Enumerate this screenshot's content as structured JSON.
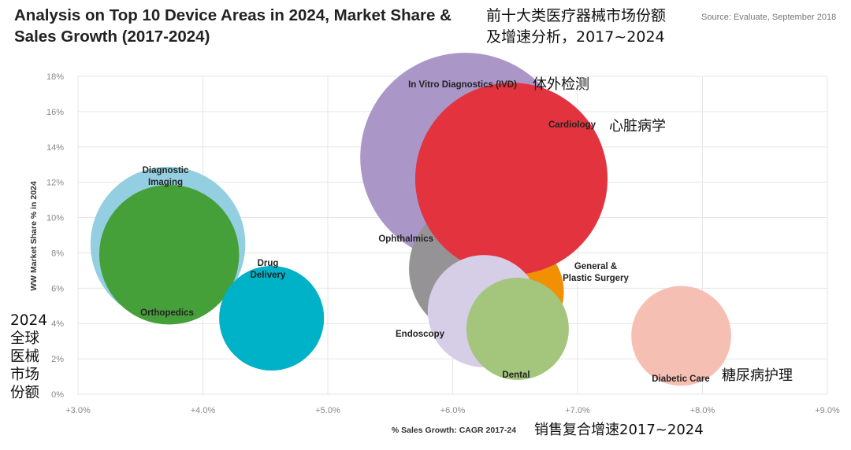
{
  "title_en": "Analysis on Top 10 Device Areas in 2024, Market Share & Sales Growth (2017-2024)",
  "title_cn_line1": "前十大类医疗器械市场份额",
  "title_cn_line2": "及增速分析，2017~2024",
  "source": "Source: Evaluate, September 2018",
  "left_cn": [
    "2024",
    "全球",
    "医械",
    "市场",
    "份额"
  ],
  "colors": {
    "ivd": "#ab96c8",
    "cardiology": "#e3333f",
    "diagnostic_imaging": "#93cfe0",
    "orthopedics": "#46a03a",
    "drug_delivery": "#00b2c8",
    "ophthalmics": "#969396",
    "general_plastic_surgery": "#f19003",
    "endoscopy": "#d6cde6",
    "dental": "#a3c67c",
    "diabetic_care": "#f6bfb4",
    "grid": "#e6e6e6"
  },
  "chart_data": {
    "type": "scatter",
    "subtype": "bubble",
    "xlabel": "% Sales Growth: CAGR 2017-24",
    "xlabel_cn": "销售复合增速2017~2024",
    "ylabel": "WW Market Share % in 2024",
    "xlim": [
      3.0,
      9.0
    ],
    "ylim": [
      0,
      18
    ],
    "x_ticks": [
      "+3.0%",
      "+4.0%",
      "+5.0%",
      "+6.0%",
      "+7.0%",
      "+8.0%",
      "+9.0%"
    ],
    "y_ticks": [
      "0%",
      "2%",
      "4%",
      "6%",
      "8%",
      "10%",
      "12%",
      "14%",
      "16%",
      "18%"
    ],
    "grid": true,
    "legend": "none",
    "points": [
      {
        "key": "ivd",
        "label": "In Vitro Diagnostics (IVD)",
        "label_cn": "体外检测",
        "x": 6.1,
        "y": 13.4,
        "size": 0.84
      },
      {
        "key": "diagnostic_imaging",
        "label": "Diagnostic Imaging",
        "x": 3.72,
        "y": 8.5,
        "size": 0.62
      },
      {
        "key": "orthopedics",
        "label": "Orthopedics",
        "x": 3.73,
        "y": 7.9,
        "size": 0.56
      },
      {
        "key": "drug_delivery",
        "label": "Drug Delivery",
        "x": 4.55,
        "y": 4.3,
        "size": 0.42
      },
      {
        "key": "ophthalmics",
        "label": "Ophthalmics",
        "x": 6.2,
        "y": 7.1,
        "size": 0.55
      },
      {
        "key": "general_plastic_surgery",
        "label": "General & Plastic Surgery",
        "x": 6.45,
        "y": 5.8,
        "size": 0.44
      },
      {
        "key": "cardiology",
        "label": "Cardiology",
        "x": 6.47,
        "y": 12.2,
        "size": 0.77
      },
      {
        "key": "endoscopy",
        "label": "Endoscopy",
        "x": 6.25,
        "y": 4.7,
        "size": 0.45
      },
      {
        "key": "dental",
        "label": "Dental",
        "x": 6.52,
        "y": 3.7,
        "size": 0.41
      },
      {
        "key": "diabetic_care",
        "label": "Diabetic Care",
        "x": 7.83,
        "y": 3.3,
        "size": 0.4
      }
    ],
    "extra_labels_cn": {
      "cardiology": "心脏病学",
      "diabetic_care": "糖尿病护理"
    }
  }
}
